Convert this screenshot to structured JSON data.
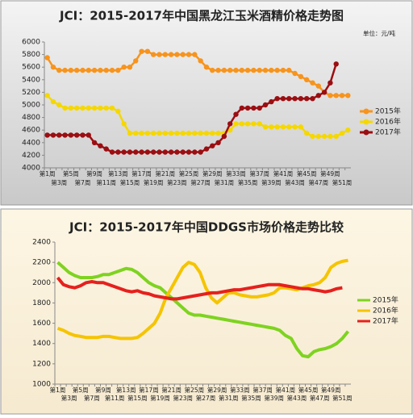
{
  "chart_data": [
    {
      "type": "line",
      "title": "JCI：2015-2017年中国黑龙江玉米酒精价格走势图",
      "unit": "单位：元/吨",
      "categories": [
        "第1周",
        null,
        "第3周",
        null,
        "第5周",
        null,
        "第7周",
        null,
        "第9周",
        null,
        "第11周",
        null,
        "第13周",
        null,
        "第15周",
        null,
        "第17周",
        null,
        "第19周",
        null,
        "第21周",
        null,
        "第23周",
        null,
        "第25周",
        null,
        "第27周",
        null,
        "第29周",
        null,
        "第31周",
        null,
        "第33周",
        null,
        "第35周",
        null,
        "第37周",
        null,
        "第39周",
        null,
        "第41周",
        null,
        "第43周",
        null,
        "第45周",
        null,
        "第47周",
        null,
        "第49周",
        null,
        "第51周",
        null
      ],
      "series": [
        {
          "name": "2015年",
          "color": "#f7941d",
          "values": [
            5750,
            5600,
            5550,
            5550,
            5550,
            5550,
            5550,
            5550,
            5550,
            5550,
            5550,
            5550,
            5550,
            5600,
            5600,
            5700,
            5850,
            5850,
            5800,
            5800,
            5800,
            5800,
            5800,
            5800,
            5800,
            5800,
            5700,
            5600,
            5550,
            5550,
            5550,
            5550,
            5550,
            5550,
            5550,
            5550,
            5550,
            5550,
            5550,
            5550,
            5550,
            5550,
            5500,
            5450,
            5400,
            5350,
            5300,
            5200,
            5150,
            5150,
            5150,
            5150
          ]
        },
        {
          "name": "2016年",
          "color": "#f5d800",
          "values": [
            5150,
            5050,
            5000,
            4950,
            4950,
            4950,
            4950,
            4950,
            4950,
            4950,
            4950,
            4950,
            4900,
            4700,
            4550,
            4550,
            4550,
            4550,
            4550,
            4550,
            4550,
            4550,
            4550,
            4550,
            4550,
            4550,
            4550,
            4550,
            4550,
            4550,
            4550,
            4600,
            4700,
            4700,
            4700,
            4700,
            4700,
            4650,
            4650,
            4650,
            4650,
            4650,
            4650,
            4650,
            4550,
            4500,
            4500,
            4500,
            4500,
            4500,
            4550,
            4600
          ]
        },
        {
          "name": "2017年",
          "color": "#9b0e12",
          "values": [
            4520,
            4520,
            4520,
            4520,
            4520,
            4520,
            4520,
            4520,
            4400,
            4350,
            4300,
            4250,
            4250,
            4250,
            4250,
            4250,
            4250,
            4250,
            4250,
            4250,
            4250,
            4250,
            4250,
            4250,
            4250,
            4250,
            4250,
            4300,
            4350,
            4400,
            4500,
            4700,
            4850,
            4950,
            4950,
            4950,
            4950,
            5000,
            5050,
            5100,
            5100,
            5100,
            5100,
            5100,
            5100,
            5100,
            5150,
            5200,
            5350,
            5650,
            null,
            null
          ]
        }
      ],
      "markers": true,
      "ylim": [
        4000,
        6000
      ],
      "yticks": [
        4000,
        4200,
        4400,
        4600,
        4800,
        5000,
        5200,
        5400,
        5600,
        5800,
        6000
      ],
      "grid": false
    },
    {
      "type": "line",
      "title": "JCI：2015-2017年中国DDGS市场价格走势比较",
      "categories": [
        "第1周",
        null,
        "第3周",
        null,
        "第5周",
        null,
        "第7周",
        null,
        "第9周",
        null,
        "第11周",
        null,
        "第13周",
        null,
        "第15周",
        null,
        "第17周",
        null,
        "第19周",
        null,
        "第21周",
        null,
        "第23周",
        null,
        "第25周",
        null,
        "第27周",
        null,
        "第29周",
        null,
        "第31周",
        null,
        "第33周",
        null,
        "第35周",
        null,
        "第37周",
        null,
        "第39周",
        null,
        "第41周",
        null,
        "第43周",
        null,
        "第45周",
        null,
        "第47周",
        null,
        "第49周",
        null,
        "第51周",
        null
      ],
      "series": [
        {
          "name": "2015年",
          "color": "#7ed320",
          "values": [
            2200,
            2150,
            2100,
            2070,
            2050,
            2050,
            2050,
            2060,
            2080,
            2080,
            2100,
            2120,
            2140,
            2130,
            2100,
            2050,
            2000,
            1970,
            1950,
            1900,
            1850,
            1800,
            1750,
            1700,
            1680,
            1680,
            1670,
            1660,
            1650,
            1640,
            1630,
            1620,
            1610,
            1600,
            1590,
            1580,
            1570,
            1560,
            1550,
            1530,
            1480,
            1450,
            1350,
            1280,
            1270,
            1320,
            1340,
            1350,
            1370,
            1400,
            1450,
            1520
          ]
        },
        {
          "name": "2016年",
          "color": "#f5c400",
          "values": [
            1550,
            1530,
            1500,
            1480,
            1470,
            1460,
            1460,
            1460,
            1470,
            1470,
            1460,
            1450,
            1450,
            1450,
            1460,
            1500,
            1550,
            1600,
            1700,
            1850,
            1950,
            2050,
            2150,
            2200,
            2180,
            2100,
            1950,
            1850,
            1800,
            1850,
            1900,
            1900,
            1880,
            1870,
            1860,
            1860,
            1870,
            1880,
            1900,
            1950,
            1950,
            1940,
            1930,
            1950,
            1970,
            1980,
            2000,
            2050,
            2150,
            2190,
            2210,
            2220
          ]
        },
        {
          "name": "2017年",
          "color": "#e5211d",
          "values": [
            2050,
            1980,
            1960,
            1950,
            1970,
            2000,
            2010,
            2000,
            2000,
            1980,
            1960,
            1940,
            1920,
            1910,
            1920,
            1900,
            1890,
            1870,
            1860,
            1850,
            1840,
            1840,
            1850,
            1860,
            1870,
            1880,
            1890,
            1900,
            1900,
            1910,
            1920,
            1930,
            1930,
            1940,
            1950,
            1960,
            1970,
            1980,
            1980,
            1980,
            1970,
            1960,
            1950,
            1940,
            1940,
            1930,
            1920,
            1910,
            1920,
            1940,
            1950,
            null
          ]
        }
      ],
      "markers": false,
      "ylim": [
        1000,
        2400
      ],
      "yticks": [
        1000,
        1200,
        1400,
        1600,
        1800,
        2000,
        2200,
        2400
      ],
      "grid": false
    }
  ]
}
